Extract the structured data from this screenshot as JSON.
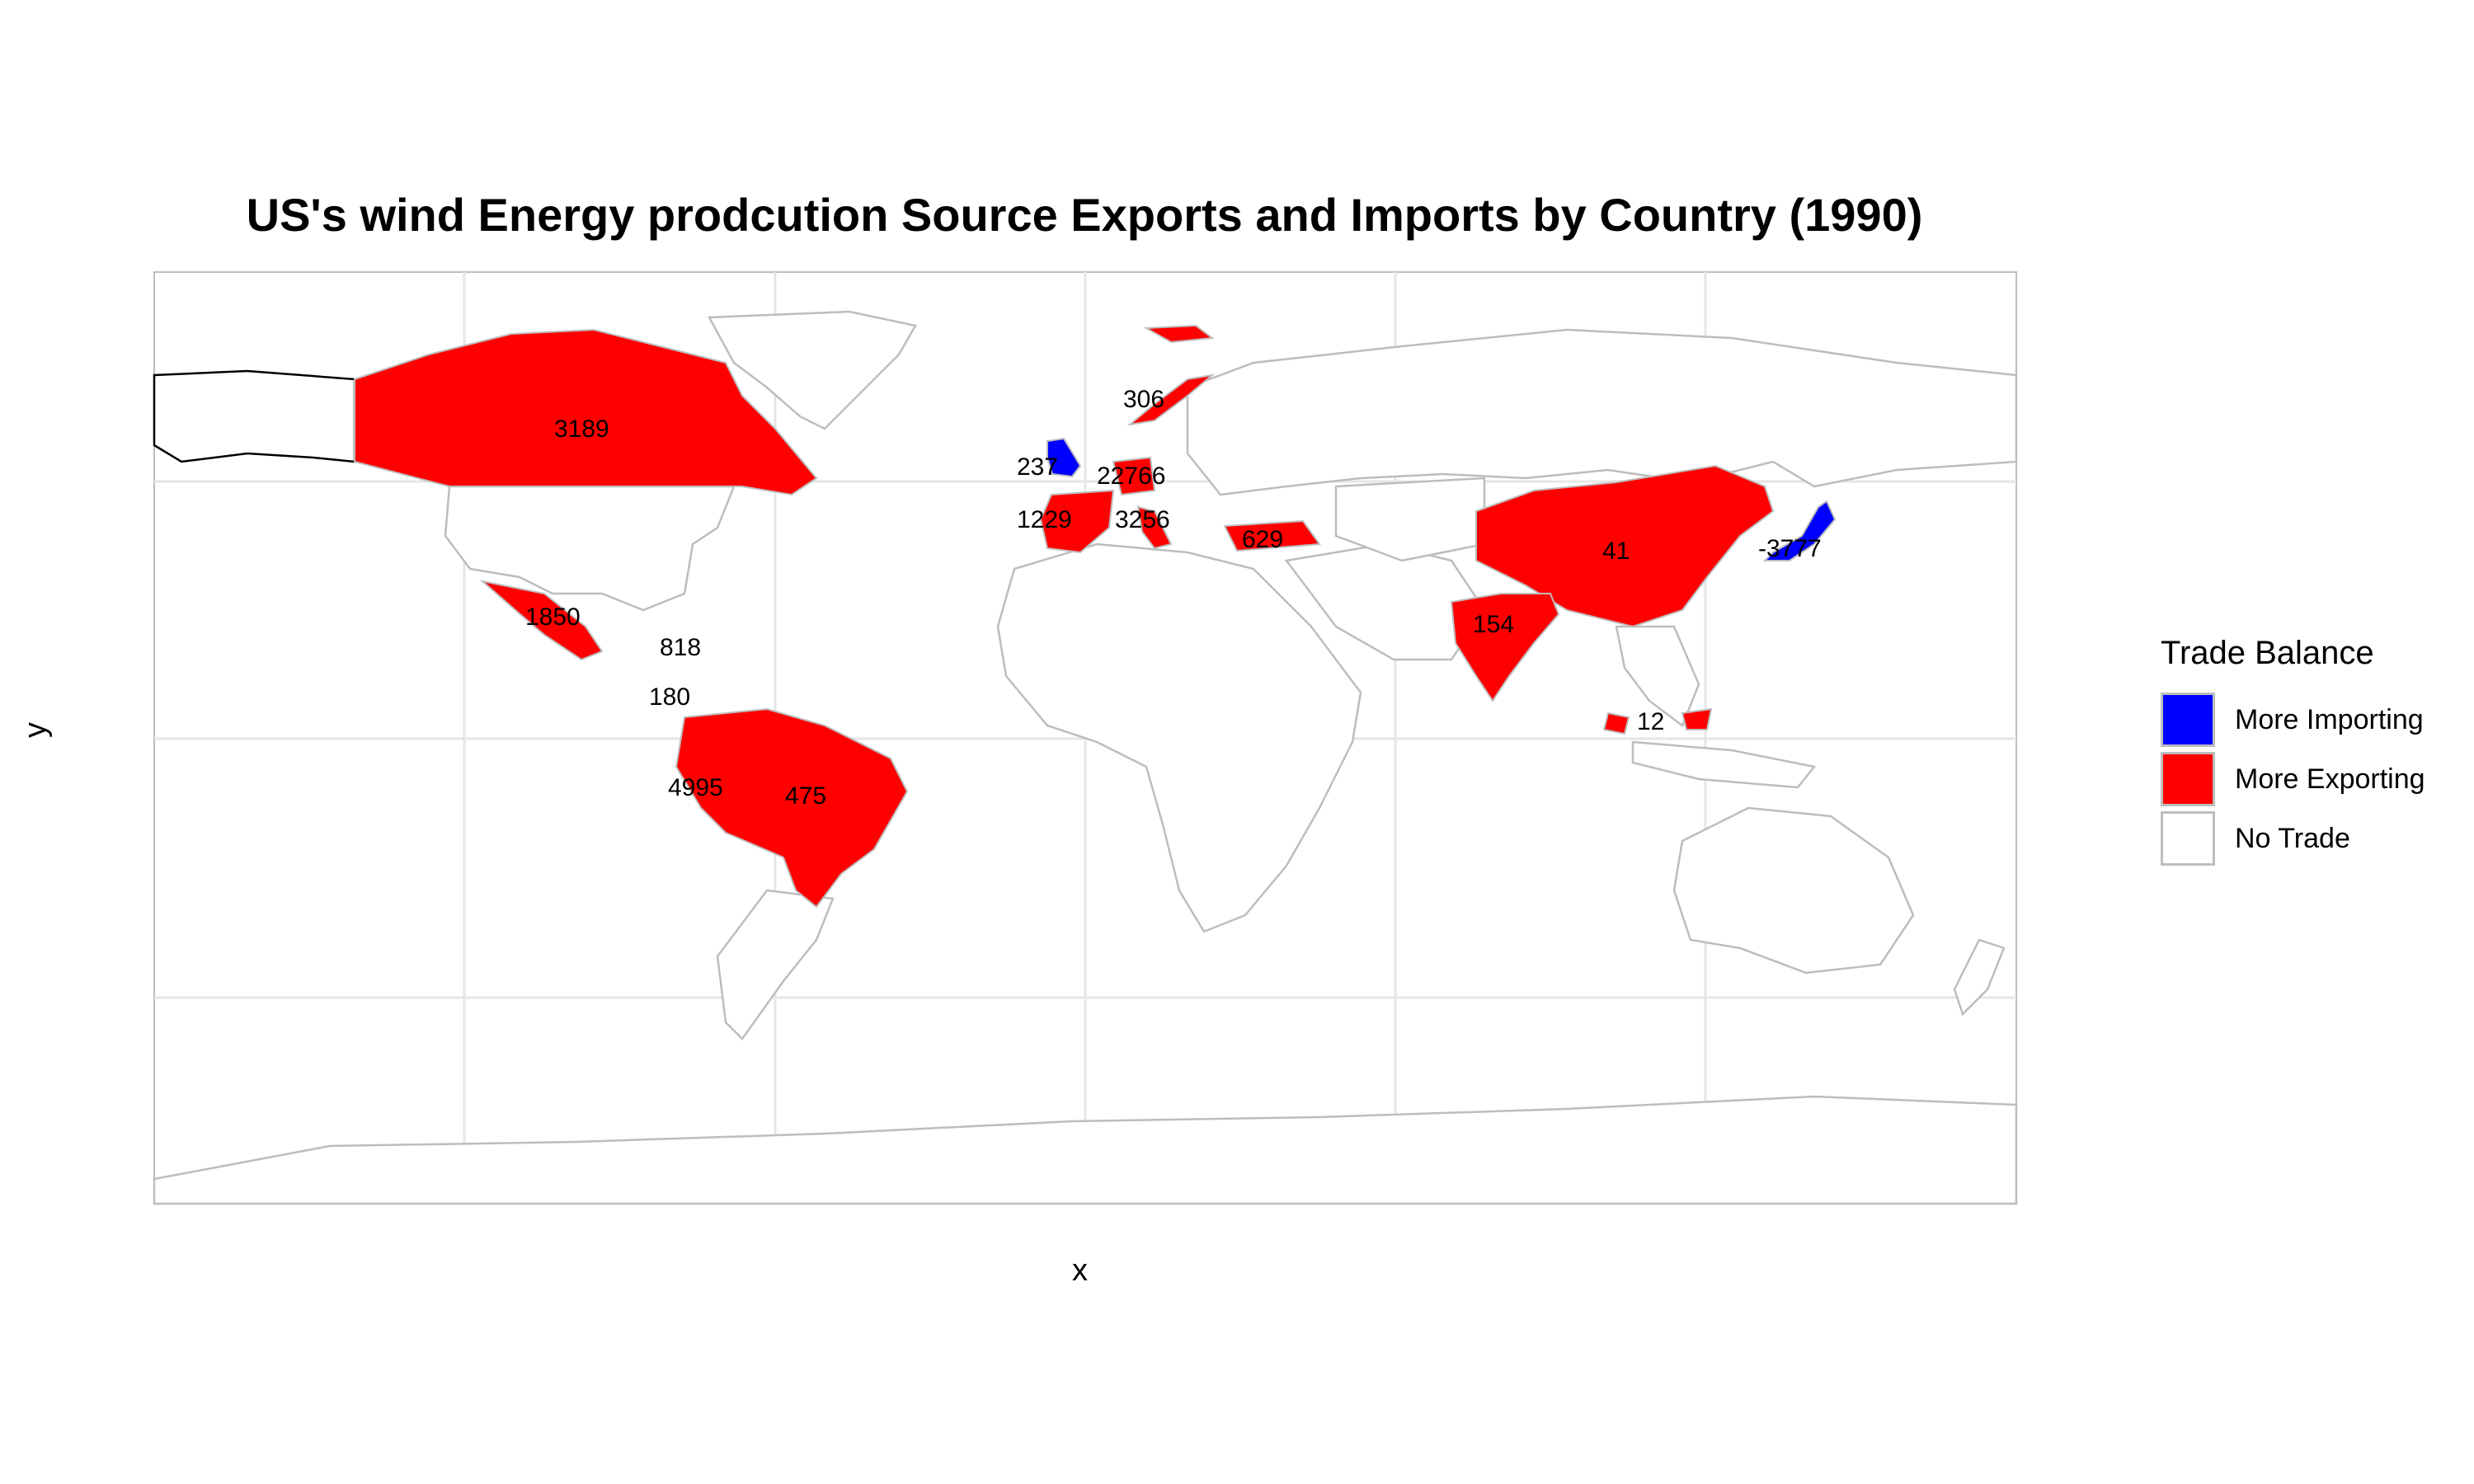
{
  "title": "US's wind Energy prodcution Source Exports and Imports by Country (1990)",
  "axes": {
    "xlabel": "x",
    "ylabel": "y"
  },
  "legend": {
    "title": "Trade Balance",
    "items": [
      {
        "label": "More Importing",
        "color": "#0000ff"
      },
      {
        "label": "More Exporting",
        "color": "#ff0000"
      },
      {
        "label": "No Trade",
        "color": "#ffffff"
      }
    ]
  },
  "colors": {
    "exporting": "#ff0000",
    "importing": "#0000ff",
    "no_trade": "#ffffff",
    "border": "#bdbdbd",
    "grid": "#e6e6e6"
  },
  "values": [
    {
      "country": "Canada",
      "value": "3189"
    },
    {
      "country": "Norway",
      "value": "306"
    },
    {
      "country": "United Kingdom",
      "value": "237"
    },
    {
      "country": "Germany",
      "value": "22766"
    },
    {
      "country": "Spain",
      "value": "1229"
    },
    {
      "country": "Italy",
      "value": "3256"
    },
    {
      "country": "Turkey",
      "value": "629"
    },
    {
      "country": "China",
      "value": "41"
    },
    {
      "country": "Japan",
      "value": "-3777"
    },
    {
      "country": "India",
      "value": "154"
    },
    {
      "country": "Malaysia",
      "value": "12"
    },
    {
      "country": "Mexico",
      "value": "1850"
    },
    {
      "country": "Caribbean",
      "value": "818"
    },
    {
      "country": "Colombia",
      "value": "180"
    },
    {
      "country": "Peru",
      "value": "4995"
    },
    {
      "country": "Brazil",
      "value": "475"
    }
  ]
}
